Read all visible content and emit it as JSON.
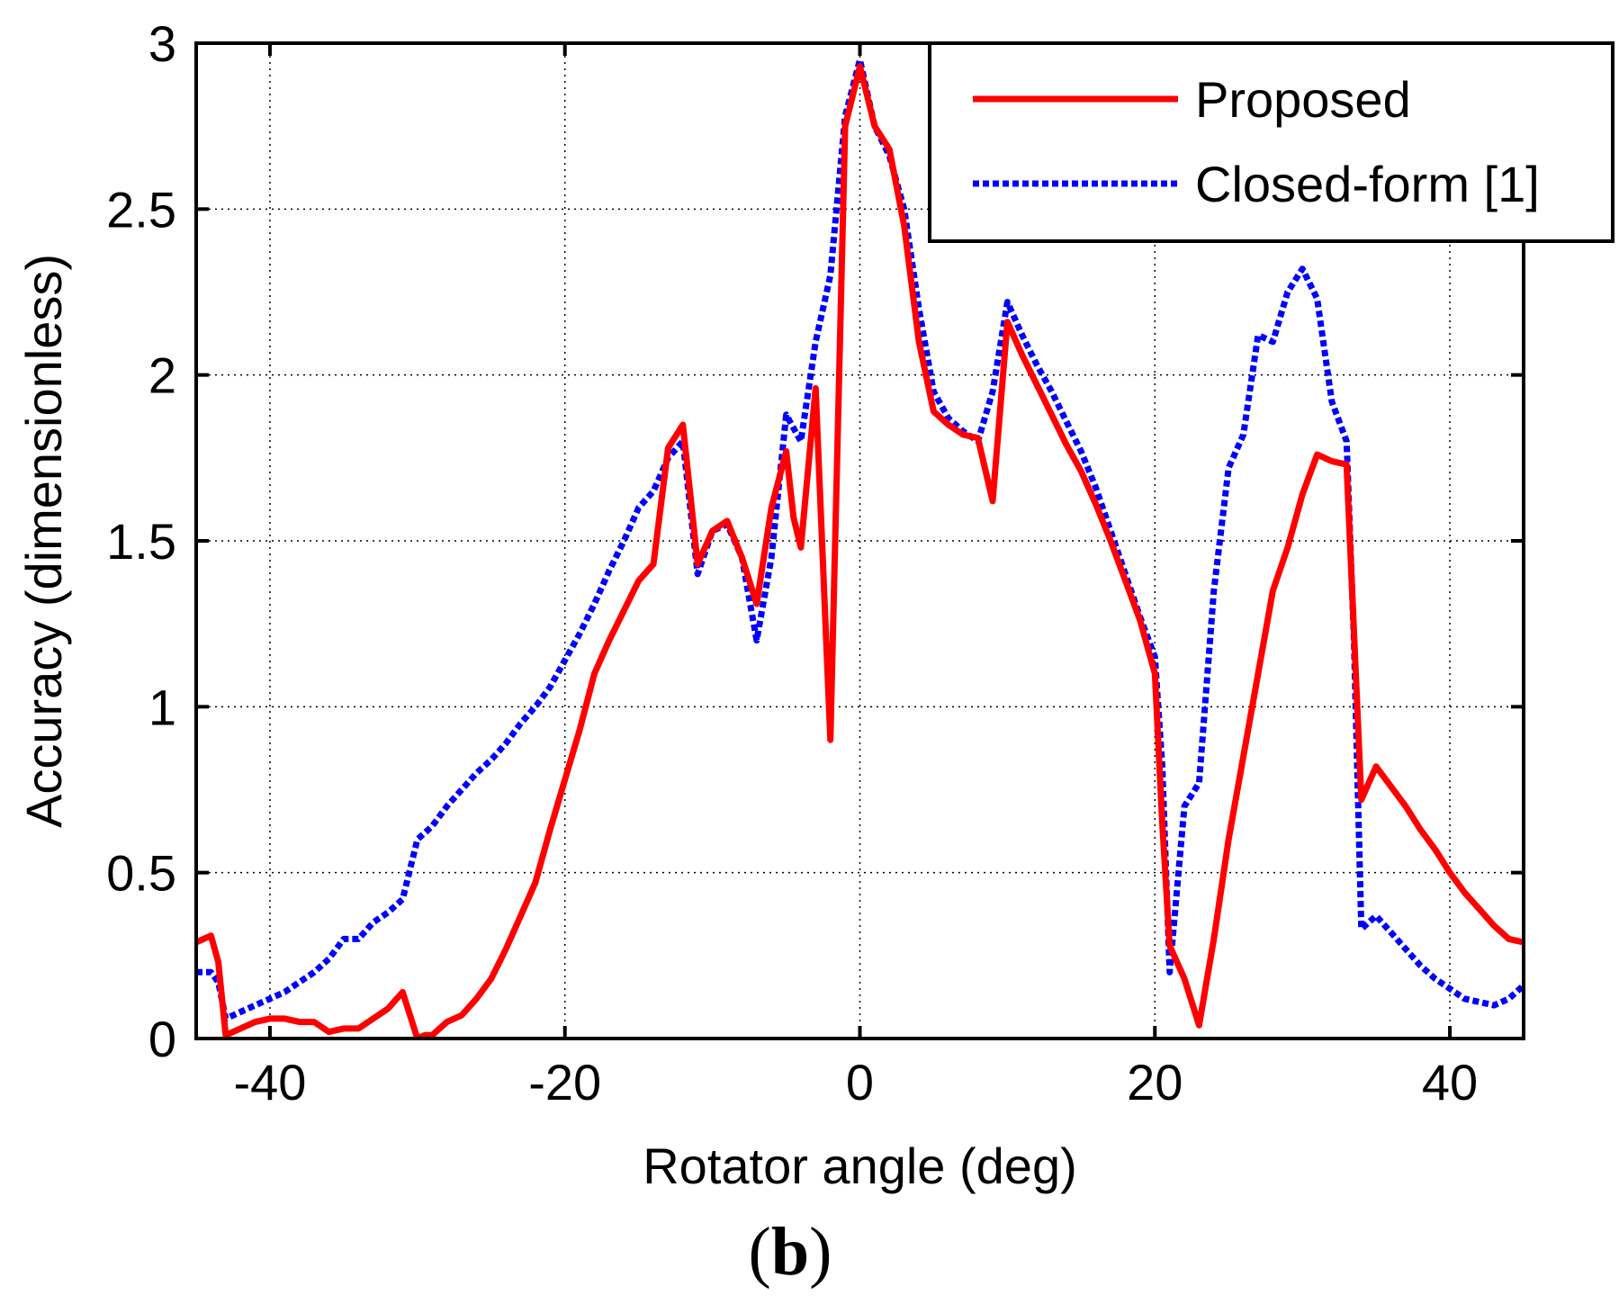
{
  "chart_data": {
    "type": "line",
    "title": "",
    "xlabel": "Rotator angle (deg)",
    "ylabel": "Accuracy (dimensionless)",
    "xlim": [
      -45,
      45
    ],
    "ylim": [
      0,
      3
    ],
    "xticks": [
      -40,
      -20,
      0,
      20,
      40
    ],
    "yticks": [
      0,
      0.5,
      1,
      1.5,
      2,
      2.5,
      3
    ],
    "xtick_labels": [
      "-40",
      "-20",
      "0",
      "20",
      "40"
    ],
    "ytick_labels": [
      "0",
      "0.5",
      "1",
      "1.5",
      "2",
      "2.5",
      "3"
    ],
    "grid": true,
    "legend_position": "top-right",
    "panel_label": {
      "open": "(",
      "letter": "b",
      "close": ")"
    },
    "series": [
      {
        "name": "Proposed",
        "color": "#ff0000",
        "style": "solid",
        "x": [
          -45,
          -44,
          -43.5,
          -43,
          -42,
          -41,
          -40,
          -39,
          -38,
          -37,
          -36,
          -35,
          -34,
          -33,
          -32,
          -31,
          -30,
          -29.5,
          -29,
          -28,
          -27,
          -26,
          -25,
          -24,
          -23,
          -22,
          -21,
          -20,
          -19,
          -18,
          -17,
          -16,
          -15,
          -14,
          -13,
          -12,
          -11,
          -10,
          -9,
          -8,
          -7,
          -6,
          -5,
          -4.5,
          -4,
          -3,
          -2,
          -1,
          0,
          1,
          2,
          3,
          4,
          5,
          6,
          7,
          8,
          9,
          10,
          11,
          12,
          13,
          14,
          15,
          16,
          17,
          18,
          19,
          20,
          20.5,
          21,
          22,
          23,
          24,
          25,
          26,
          27,
          28,
          29,
          30,
          31,
          32,
          33,
          34,
          35,
          36,
          37,
          38,
          39,
          40,
          41,
          42,
          43,
          44,
          45
        ],
        "y": [
          0.29,
          0.31,
          0.23,
          0.01,
          0.03,
          0.05,
          0.06,
          0.06,
          0.05,
          0.05,
          0.02,
          0.03,
          0.03,
          0.06,
          0.09,
          0.14,
          0.0,
          0.01,
          0.01,
          0.05,
          0.07,
          0.12,
          0.18,
          0.27,
          0.37,
          0.47,
          0.63,
          0.78,
          0.93,
          1.1,
          1.2,
          1.29,
          1.38,
          1.43,
          1.78,
          1.85,
          1.43,
          1.53,
          1.56,
          1.45,
          1.31,
          1.6,
          1.77,
          1.57,
          1.48,
          1.96,
          0.9,
          2.75,
          2.93,
          2.75,
          2.68,
          2.45,
          2.1,
          1.89,
          1.85,
          1.82,
          1.81,
          1.62,
          2.16,
          2.06,
          1.97,
          1.88,
          1.79,
          1.71,
          1.61,
          1.5,
          1.38,
          1.26,
          1.1,
          0.65,
          0.28,
          0.18,
          0.04,
          0.3,
          0.6,
          0.85,
          1.1,
          1.35,
          1.48,
          1.64,
          1.76,
          1.74,
          1.73,
          0.72,
          0.82,
          0.76,
          0.7,
          0.63,
          0.57,
          0.5,
          0.44,
          0.39,
          0.34,
          0.3,
          0.29
        ]
      },
      {
        "name": "Closed-form [1]",
        "color": "#0000ff",
        "style": "dotted",
        "x": [
          -45,
          -44,
          -43.5,
          -43,
          -42,
          -41,
          -40,
          -39,
          -38,
          -37,
          -36,
          -35,
          -34,
          -33,
          -32,
          -31,
          -30,
          -29,
          -28,
          -27,
          -26,
          -25,
          -24,
          -23,
          -22,
          -21,
          -20,
          -19,
          -18,
          -17,
          -16,
          -15,
          -14,
          -13,
          -12,
          -11,
          -10,
          -9,
          -8,
          -7,
          -6,
          -5,
          -4,
          -3,
          -2,
          -1,
          0,
          1,
          2,
          3,
          4,
          5,
          6,
          7,
          8,
          9,
          10,
          11,
          12,
          13,
          14,
          15,
          16,
          17,
          18,
          19,
          20,
          20.5,
          21,
          22,
          23,
          24,
          25,
          26,
          27,
          28,
          29,
          30,
          31,
          32,
          33,
          33.5,
          34,
          35,
          36,
          37,
          38,
          39,
          40,
          41,
          42,
          43,
          44,
          45
        ],
        "y": [
          0.2,
          0.2,
          0.17,
          0.06,
          0.08,
          0.1,
          0.12,
          0.14,
          0.17,
          0.2,
          0.24,
          0.3,
          0.3,
          0.35,
          0.38,
          0.42,
          0.6,
          0.64,
          0.7,
          0.75,
          0.8,
          0.84,
          0.89,
          0.95,
          1.0,
          1.06,
          1.14,
          1.22,
          1.31,
          1.41,
          1.5,
          1.6,
          1.65,
          1.75,
          1.8,
          1.4,
          1.53,
          1.55,
          1.45,
          1.2,
          1.45,
          1.88,
          1.8,
          2.1,
          2.3,
          2.78,
          2.95,
          2.75,
          2.66,
          2.5,
          2.2,
          1.95,
          1.87,
          1.83,
          1.8,
          1.95,
          2.22,
          2.12,
          2.03,
          1.95,
          1.86,
          1.77,
          1.66,
          1.53,
          1.4,
          1.27,
          1.15,
          0.82,
          0.2,
          0.7,
          0.77,
          1.35,
          1.72,
          1.82,
          2.12,
          2.1,
          2.25,
          2.32,
          2.23,
          1.92,
          1.8,
          1.2,
          0.33,
          0.37,
          0.32,
          0.27,
          0.22,
          0.18,
          0.15,
          0.12,
          0.11,
          0.1,
          0.12,
          0.16
        ]
      }
    ]
  }
}
